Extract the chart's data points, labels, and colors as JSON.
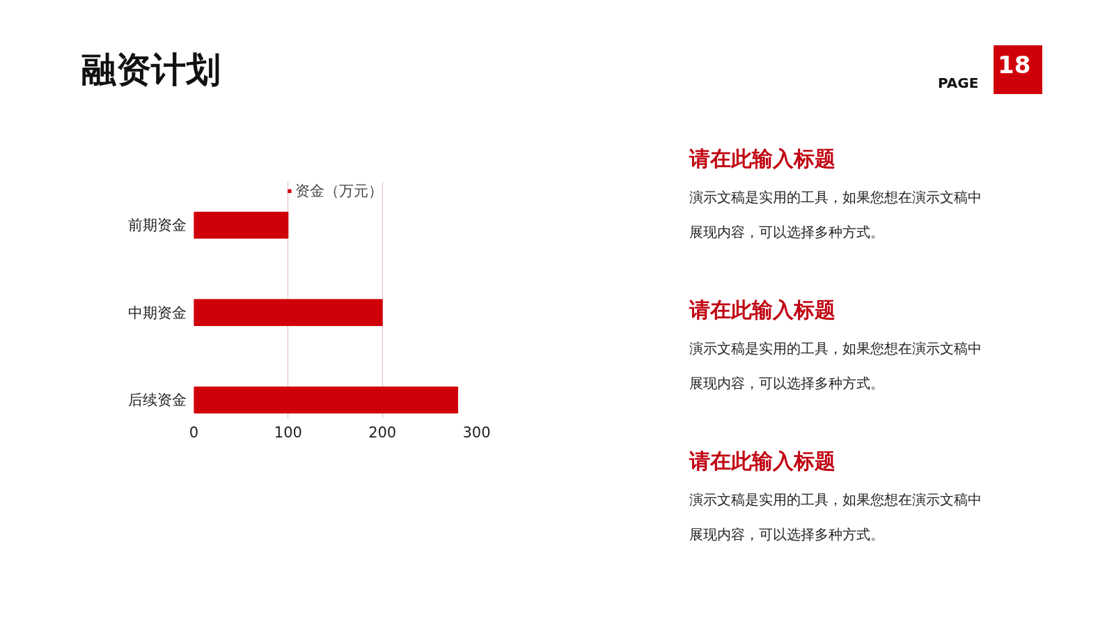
{
  "chart_data": {
    "type": "bar",
    "orientation": "horizontal",
    "title": "融资计划",
    "categories": [
      "前期资金",
      "中期资金",
      "后续资金"
    ],
    "series": [
      {
        "name": "资金（万元）",
        "color": "#d0000b",
        "values": [
          100,
          200,
          280
        ]
      }
    ],
    "xlim": [
      0,
      300
    ],
    "xticks": [
      0,
      100,
      200,
      300
    ],
    "grid": "x",
    "legend": "top",
    "annotations": [
      "PAGE",
      "18",
      "请在此输入标题",
      "演示文稿是实用的工具，如果您想在演示文稿中",
      "展现内容，可以选择多种方式。",
      "请在此输入标题",
      "演示文稿是实用的工具，如果您想在演示文稿中",
      "展现内容，可以选择多种方式。",
      "请在此输入标题",
      "演示文稿是实用的工具，如果您想在演示文稿中",
      "展现内容，可以选择多种方式。"
    ]
  }
}
